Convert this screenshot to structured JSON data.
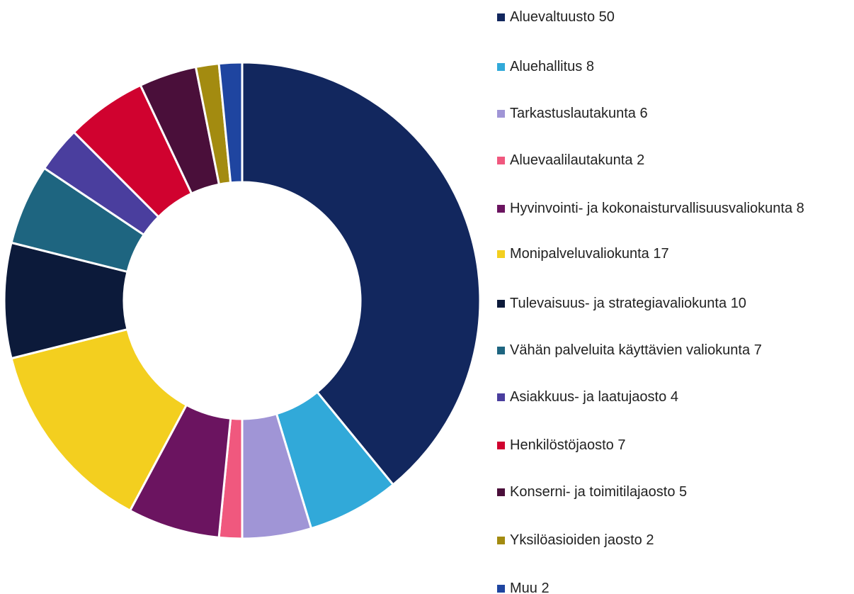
{
  "chart_data": {
    "type": "donut",
    "categories": [
      "Aluevaltuusto",
      "Aluehallitus",
      "Tarkastuslautakunta",
      "Aluevaalilautakunta",
      "Hyvinvointi- ja kokonaisturvallisuusvaliokunta",
      "Monipalveluvaliokunta",
      "Tulevaisuus- ja strategiavaliokunta",
      "Vähän palveluita käyttävien valiokunta",
      "Asiakkuus- ja laatujaosto",
      "Henkilöstöjaosto",
      "Konserni- ja toimitilajaosto",
      "Yksilöasioiden jaosto",
      "Muu"
    ],
    "values": [
      50,
      8,
      6,
      2,
      8,
      17,
      10,
      7,
      4,
      7,
      5,
      2,
      2
    ],
    "colors": [
      "#12275e",
      "#31a9d9",
      "#a095d6",
      "#f0587e",
      "#6b1460",
      "#f3cf1f",
      "#0c1a3a",
      "#1e6580",
      "#4a3e9e",
      "#d0022f",
      "#4a0f3a",
      "#a38b10",
      "#1f45a0"
    ],
    "legend": "right"
  }
}
